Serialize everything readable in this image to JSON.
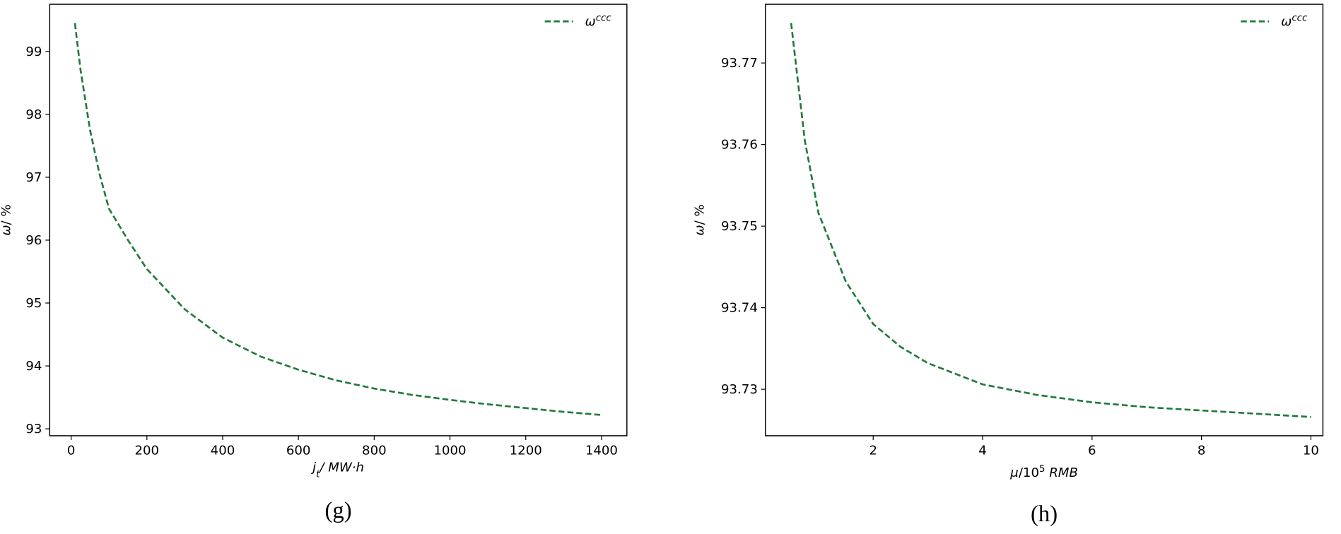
{
  "charts": [
    {
      "chart_data": {
        "type": "line",
        "caption": "(g)",
        "xlabel": [
          {
            "text": "j",
            "style": "italic"
          },
          {
            "text": "t",
            "style": "sub"
          },
          {
            "text": "/ MW·h",
            "style": "italic"
          }
        ],
        "ylabel": [
          {
            "text": "ω",
            "style": "italic"
          },
          {
            "text": "/ %",
            "style": "normal"
          }
        ],
        "x": [
          10,
          25,
          50,
          75,
          100,
          150,
          200,
          300,
          400,
          500,
          600,
          700,
          800,
          900,
          1000,
          1100,
          1200,
          1300,
          1400
        ],
        "series": [
          {
            "name": "ω",
            "name_sup": "ccc",
            "color": "#217a3b",
            "values": [
              99.45,
              98.7,
              97.75,
              97.05,
              96.5,
              96.0,
              95.54,
              94.9,
              94.45,
              94.15,
              93.94,
              93.77,
              93.64,
              93.54,
              93.46,
              93.39,
              93.33,
              93.27,
              93.22
            ]
          }
        ],
        "xlim": [
          -56.5,
          1467
        ],
        "ylim": [
          92.89,
          99.75
        ],
        "xticks": [
          0,
          200,
          400,
          600,
          800,
          1000,
          1200,
          1400
        ],
        "yticks": [
          93,
          94,
          95,
          96,
          97,
          98,
          99
        ],
        "legend": "upper right",
        "grid": false
      }
    },
    {
      "chart_data": {
        "type": "line",
        "caption": "(h)",
        "xlabel": [
          {
            "text": "μ",
            "style": "italic"
          },
          {
            "text": "/10",
            "style": "normal"
          },
          {
            "text": "5",
            "style": "sup"
          },
          {
            "text": " RMB",
            "style": "italic"
          }
        ],
        "ylabel": [
          {
            "text": "ω",
            "style": "italic"
          },
          {
            "text": "/ %",
            "style": "normal"
          }
        ],
        "x": [
          0.5,
          0.75,
          1,
          1.5,
          2,
          2.5,
          3,
          4,
          5,
          6,
          7,
          8,
          9,
          10
        ],
        "series": [
          {
            "name": "ω",
            "name_sup": "ccc",
            "color": "#217a3b",
            "values": [
              93.7749,
              93.7605,
              93.7516,
              93.7432,
              93.738,
              93.7352,
              93.7332,
              93.7306,
              93.7293,
              93.7284,
              93.7278,
              93.7274,
              93.727,
              93.7266
            ]
          }
        ],
        "xlim": [
          0.03,
          10.22
        ],
        "ylim": [
          93.7243,
          93.7772
        ],
        "xticks": [
          2,
          4,
          6,
          8,
          10
        ],
        "yticks": [
          93.73,
          93.74,
          93.75,
          93.76,
          93.77
        ],
        "legend": "upper right",
        "grid": false
      }
    }
  ]
}
